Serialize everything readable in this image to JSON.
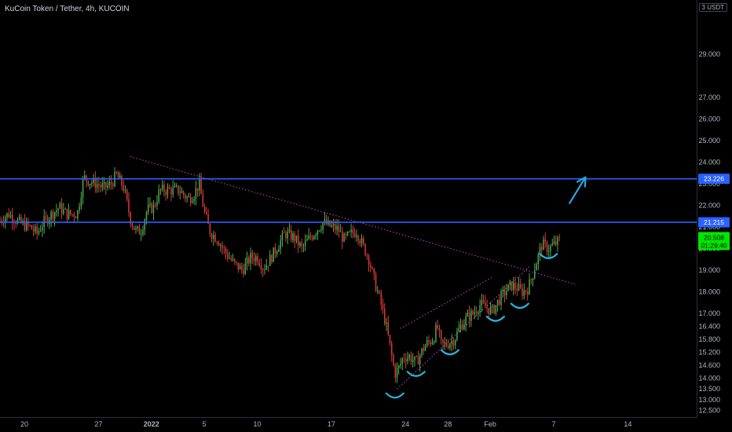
{
  "header": {
    "title": "KuCoin Token / Tether, 4h, KUCOIN",
    "currency": "3 USDT"
  },
  "chart_data": {
    "type": "candlestick",
    "price_axis_ticks": [
      "29.000",
      "27.000",
      "26.000",
      "25.000",
      "24.000",
      "23.000",
      "22.000",
      "21.000",
      "20.000",
      "19.000",
      "18.000",
      "17.000",
      "16.400",
      "15.800",
      "15.200",
      "14.600",
      "14.000",
      "13.500",
      "13.000",
      "12.500"
    ],
    "time_axis_ticks": [
      {
        "label": "20",
        "day": 0
      },
      {
        "label": "27",
        "day": 7
      },
      {
        "label": "2022",
        "day": 12,
        "bold": true
      },
      {
        "label": "5",
        "day": 17
      },
      {
        "label": "10",
        "day": 22
      },
      {
        "label": "17",
        "day": 29
      },
      {
        "label": "24",
        "day": 36
      },
      {
        "label": "28",
        "day": 40
      },
      {
        "label": "Feb",
        "day": 44
      },
      {
        "label": "7",
        "day": 50
      },
      {
        "label": "14",
        "day": 57
      }
    ],
    "x_range_days": [
      -2.3,
      63.5
    ],
    "y_range": [
      12.2,
      31.5
    ],
    "horizontal_levels": [
      {
        "name": "resistance_upper",
        "price": 23.226,
        "label": "23.226",
        "color": "#2962ff"
      },
      {
        "name": "resistance_lower",
        "price": 21.215,
        "label": "21.215",
        "color": "#2962ff"
      }
    ],
    "last_price": {
      "label": "20.508",
      "countdown": "01:29:40",
      "price": 20.508,
      "color": "#00e600"
    },
    "descending_trendline": {
      "day1": 10,
      "p1": 24.25,
      "day2": 52,
      "p2": 18.35,
      "color": "#cc44cc"
    },
    "wedge_upper": {
      "day1": 35.5,
      "p1": 16.3,
      "day2": 44.3,
      "p2": 18.7,
      "color": "#cc44cc"
    },
    "wedge_lower": {
      "day1": 35.2,
      "p1": 13.5,
      "day2": 47.8,
      "p2": 19.2,
      "color": "#cc44cc"
    },
    "bottom_markers": [
      {
        "day": 35.0,
        "price": 13.3
      },
      {
        "day": 37.0,
        "price": 14.3
      },
      {
        "day": 40.2,
        "price": 15.3
      },
      {
        "day": 44.5,
        "price": 16.85
      },
      {
        "day": 46.8,
        "price": 17.45
      },
      {
        "day": 49.5,
        "price": 19.75
      }
    ],
    "arrow": {
      "from_day": 51.5,
      "from_price": 22.1,
      "to_day": 53.0,
      "to_price": 23.3,
      "color": "#26a7de"
    },
    "close_path": [
      [
        -2.3,
        21.3
      ],
      [
        -1.5,
        21.6
      ],
      [
        -0.5,
        21.2
      ],
      [
        0.5,
        21.0
      ],
      [
        1.2,
        20.7
      ],
      [
        1.8,
        21.2
      ],
      [
        2.6,
        21.6
      ],
      [
        3.3,
        21.9
      ],
      [
        4.0,
        21.6
      ],
      [
        5.0,
        21.6
      ],
      [
        5.6,
        23.3
      ],
      [
        6.2,
        23.1
      ],
      [
        6.8,
        23.0
      ],
      [
        7.5,
        22.8
      ],
      [
        8.2,
        23.0
      ],
      [
        8.7,
        23.4
      ],
      [
        9.4,
        22.8
      ],
      [
        10.0,
        21.4
      ],
      [
        10.5,
        20.8
      ],
      [
        11.0,
        20.8
      ],
      [
        11.6,
        21.8
      ],
      [
        12.2,
        21.9
      ],
      [
        12.8,
        22.7
      ],
      [
        13.4,
        22.7
      ],
      [
        14.0,
        22.7
      ],
      [
        14.6,
        22.7
      ],
      [
        15.5,
        22.3
      ],
      [
        16.0,
        22.5
      ],
      [
        16.5,
        23.0
      ],
      [
        17.0,
        21.7
      ],
      [
        17.5,
        20.8
      ],
      [
        18.3,
        20.4
      ],
      [
        19.0,
        19.8
      ],
      [
        19.8,
        19.3
      ],
      [
        20.6,
        19.0
      ],
      [
        21.4,
        19.6
      ],
      [
        22.0,
        19.6
      ],
      [
        22.6,
        19.1
      ],
      [
        23.2,
        19.5
      ],
      [
        23.8,
        20.0
      ],
      [
        24.6,
        20.7
      ],
      [
        25.5,
        20.5
      ],
      [
        26.2,
        20.0
      ],
      [
        26.8,
        20.4
      ],
      [
        27.5,
        20.8
      ],
      [
        28.2,
        21.2
      ],
      [
        29.0,
        21.0
      ],
      [
        29.6,
        20.9
      ],
      [
        30.2,
        20.4
      ],
      [
        30.9,
        20.7
      ],
      [
        31.4,
        20.8
      ],
      [
        32.0,
        20.1
      ],
      [
        32.5,
        19.6
      ],
      [
        33.0,
        18.6
      ],
      [
        33.6,
        17.6
      ],
      [
        34.1,
        16.6
      ],
      [
        34.6,
        15.3
      ],
      [
        35.0,
        14.2
      ],
      [
        35.4,
        14.5
      ],
      [
        35.8,
        15.0
      ],
      [
        36.4,
        15.0
      ],
      [
        37.0,
        14.7
      ],
      [
        37.6,
        15.3
      ],
      [
        38.0,
        15.6
      ],
      [
        38.6,
        15.8
      ],
      [
        39.0,
        16.4
      ],
      [
        39.4,
        15.5
      ],
      [
        40.0,
        15.6
      ],
      [
        40.6,
        15.8
      ],
      [
        41.2,
        16.4
      ],
      [
        41.8,
        16.8
      ],
      [
        42.4,
        17.0
      ],
      [
        43.0,
        17.4
      ],
      [
        43.6,
        17.3
      ],
      [
        44.2,
        17.1
      ],
      [
        44.8,
        17.6
      ],
      [
        45.4,
        18.0
      ],
      [
        46.0,
        18.3
      ],
      [
        46.5,
        18.2
      ],
      [
        47.0,
        18.0
      ],
      [
        47.5,
        18.1
      ],
      [
        47.9,
        18.6
      ],
      [
        48.3,
        19.3
      ],
      [
        48.9,
        20.2
      ],
      [
        49.5,
        20.0
      ],
      [
        50.1,
        20.2
      ],
      [
        50.6,
        20.4
      ]
    ]
  }
}
